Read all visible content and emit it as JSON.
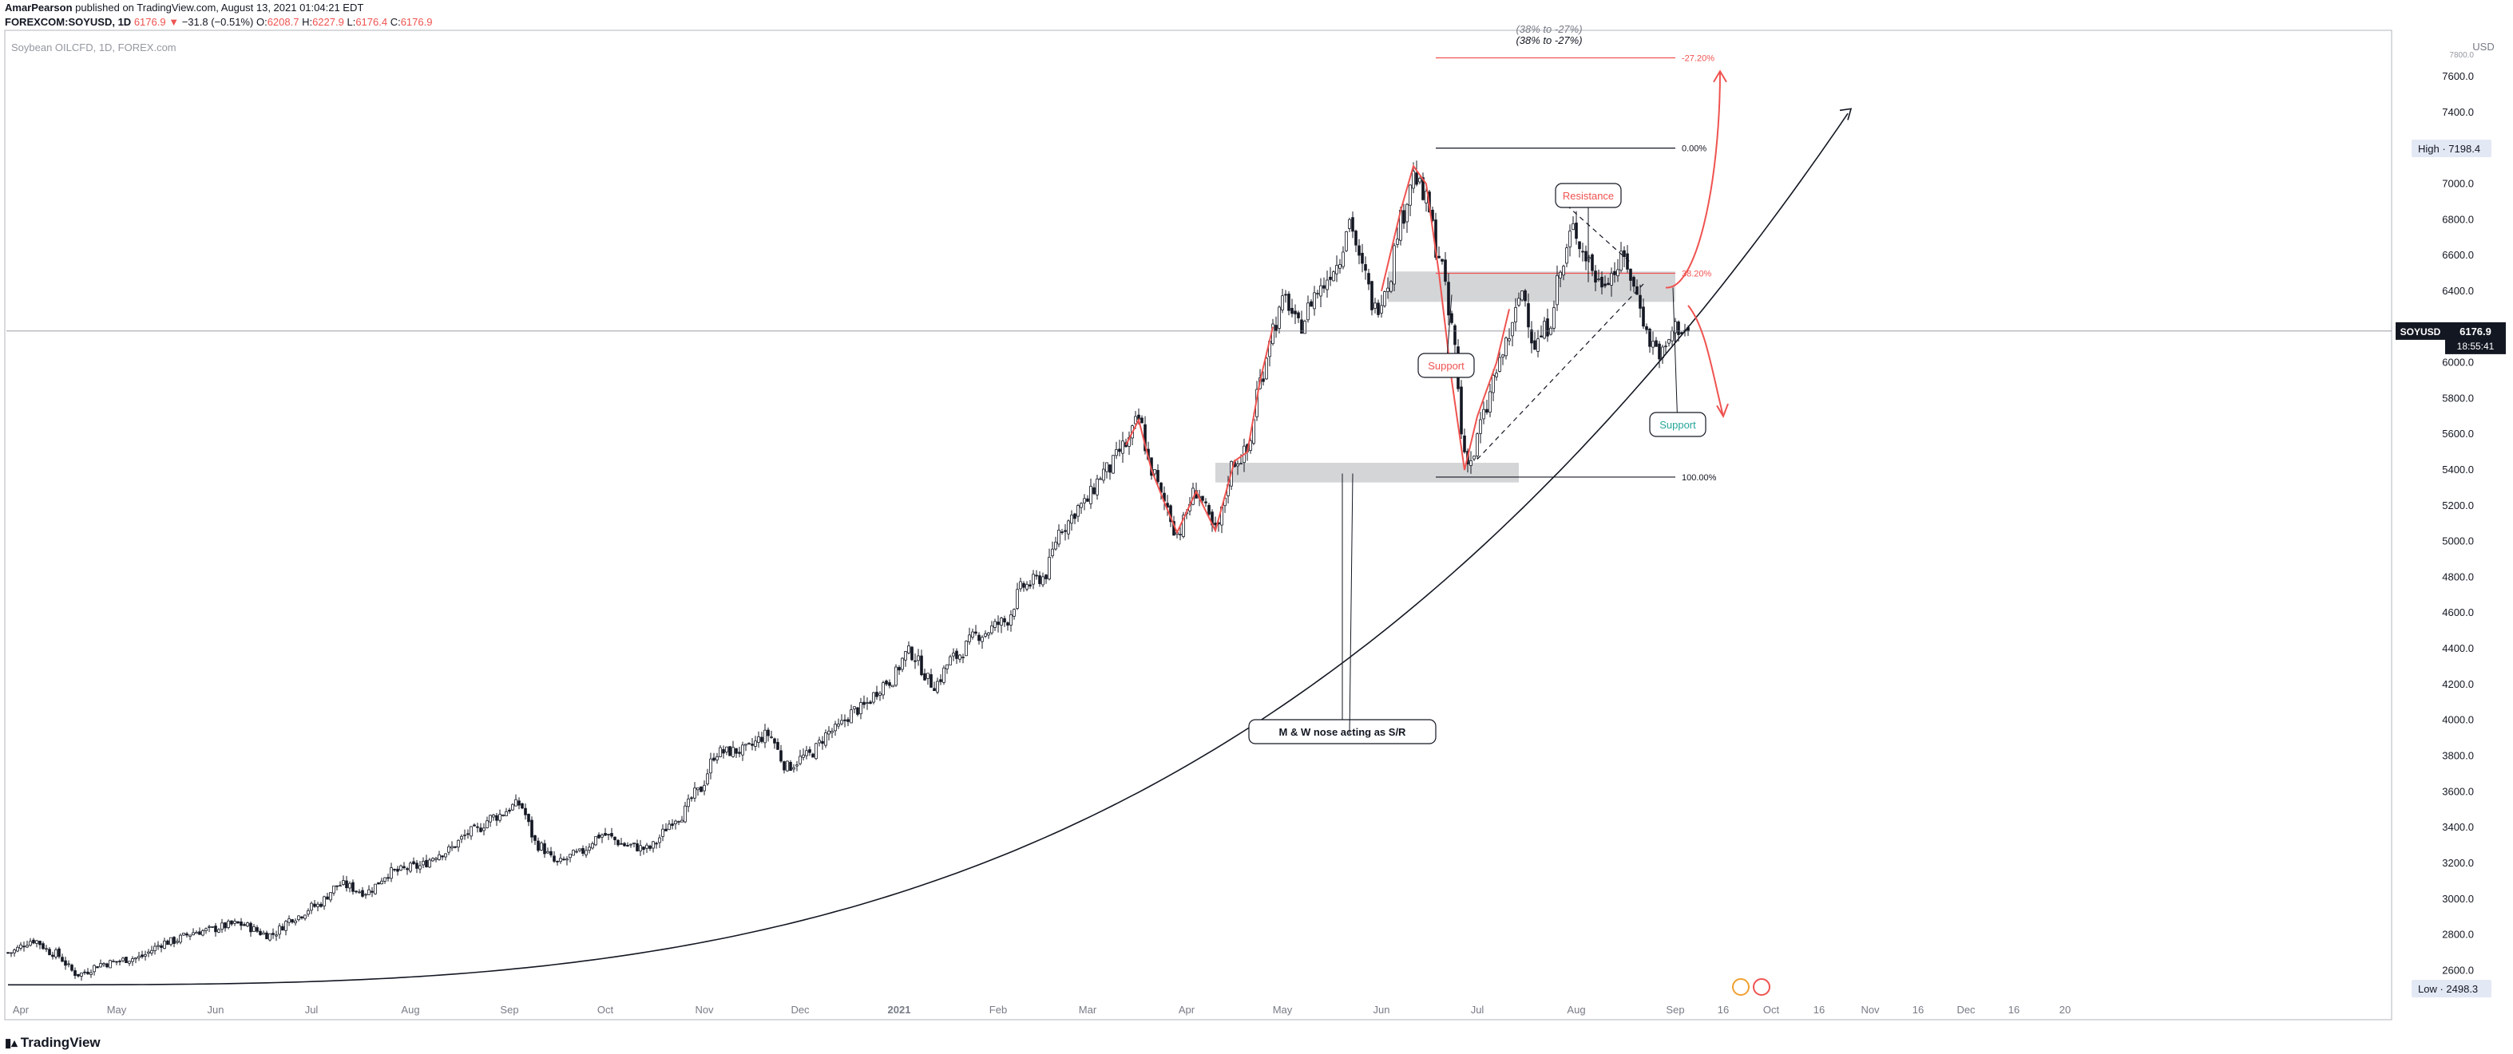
{
  "header": {
    "author": "AmarPearson",
    "published": "published on TradingView.com, August 13, 2021 01:04:21 EDT",
    "symbol_line": "FOREXCOM:SOYUSD, 1D",
    "last": "6176.9",
    "change": "−31.8 (−0.51%)",
    "o_label": "O:",
    "o": "6208.7",
    "h_label": "H:",
    "h": "6227.9",
    "l_label": "L:",
    "l": "6176.4",
    "c_label": "C:",
    "c": "6176.9"
  },
  "footer": {
    "brand": "TradingView",
    "logo_icon": "tradingview-logo-icon"
  },
  "colors": {
    "red": "#ef5350",
    "green": "#26a69a",
    "grid": "#e0e3eb",
    "zone": "#c9cacd",
    "candle_up": "#ffffff",
    "candle_down": "#131722"
  },
  "chart_data": {
    "type": "candlestick",
    "instrument_label": "Soybean OILCFD, 1D, FOREX.com",
    "ylim": [
      2450,
      7850
    ],
    "y_ticks": [
      2600,
      2800,
      3000,
      3200,
      3400,
      3600,
      3800,
      4000,
      4200,
      4400,
      4600,
      4800,
      5000,
      5200,
      5400,
      5600,
      5800,
      6000,
      6200,
      6400,
      6600,
      6800,
      7000,
      7200,
      7400,
      7600
    ],
    "y_tick_labels": [
      "2600.0",
      "2800.0",
      "3000.0",
      "3200.0",
      "3400.0",
      "3600.0",
      "3800.0",
      "4000.0",
      "4200.0",
      "4400.0",
      "4600.0",
      "4800.0",
      "5000.0",
      "5200.0",
      "5400.0",
      "5600.0",
      "5800.0",
      "6000.0",
      "6200.0",
      "6400.0",
      "6600.0",
      "6800.0",
      "7000.0",
      "7200.0",
      "7400.0",
      "7600.0"
    ],
    "y_top_label": "7800.0",
    "x_ticks": [
      {
        "day": 4,
        "label": "Apr",
        "bold": false
      },
      {
        "day": 34,
        "label": "May",
        "bold": false
      },
      {
        "day": 65,
        "label": "Jun",
        "bold": false
      },
      {
        "day": 95,
        "label": "Jul",
        "bold": false
      },
      {
        "day": 126,
        "label": "Aug",
        "bold": false
      },
      {
        "day": 157,
        "label": "Sep",
        "bold": false
      },
      {
        "day": 187,
        "label": "Oct",
        "bold": false
      },
      {
        "day": 218,
        "label": "Nov",
        "bold": false
      },
      {
        "day": 248,
        "label": "Dec",
        "bold": false
      },
      {
        "day": 279,
        "label": "2021",
        "bold": true
      },
      {
        "day": 310,
        "label": "Feb",
        "bold": false
      },
      {
        "day": 338,
        "label": "Mar",
        "bold": false
      },
      {
        "day": 369,
        "label": "Apr",
        "bold": false
      },
      {
        "day": 399,
        "label": "May",
        "bold": false
      },
      {
        "day": 430,
        "label": "Jun",
        "bold": false
      },
      {
        "day": 460,
        "label": "Jul",
        "bold": false
      },
      {
        "day": 491,
        "label": "Aug",
        "bold": false
      },
      {
        "day": 522,
        "label": "Sep",
        "bold": false
      },
      {
        "day": 537,
        "label": "16",
        "bold": false
      },
      {
        "day": 552,
        "label": "Oct",
        "bold": false
      },
      {
        "day": 567,
        "label": "16",
        "bold": false
      },
      {
        "day": 583,
        "label": "Nov",
        "bold": false
      },
      {
        "day": 598,
        "label": "16",
        "bold": false
      },
      {
        "day": 613,
        "label": "Dec",
        "bold": false
      },
      {
        "day": 628,
        "label": "16",
        "bold": false
      },
      {
        "day": 644,
        "label": "20",
        "bold": false
      }
    ],
    "x_range_days": [
      0,
      650
    ],
    "anchors": [
      [
        0,
        2700
      ],
      [
        8,
        2770
      ],
      [
        14,
        2700
      ],
      [
        22,
        2580
      ],
      [
        30,
        2640
      ],
      [
        40,
        2670
      ],
      [
        50,
        2760
      ],
      [
        60,
        2820
      ],
      [
        72,
        2860
      ],
      [
        82,
        2800
      ],
      [
        90,
        2900
      ],
      [
        96,
        2960
      ],
      [
        104,
        3080
      ],
      [
        112,
        3040
      ],
      [
        120,
        3150
      ],
      [
        128,
        3180
      ],
      [
        136,
        3260
      ],
      [
        146,
        3380
      ],
      [
        152,
        3460
      ],
      [
        160,
        3530
      ],
      [
        166,
        3300
      ],
      [
        172,
        3200
      ],
      [
        178,
        3250
      ],
      [
        186,
        3360
      ],
      [
        194,
        3300
      ],
      [
        200,
        3280
      ],
      [
        210,
        3460
      ],
      [
        216,
        3600
      ],
      [
        222,
        3820
      ],
      [
        230,
        3830
      ],
      [
        238,
        3920
      ],
      [
        244,
        3740
      ],
      [
        250,
        3800
      ],
      [
        258,
        3940
      ],
      [
        266,
        4060
      ],
      [
        276,
        4220
      ],
      [
        282,
        4380
      ],
      [
        290,
        4200
      ],
      [
        296,
        4350
      ],
      [
        304,
        4480
      ],
      [
        312,
        4550
      ],
      [
        318,
        4750
      ],
      [
        324,
        4800
      ],
      [
        330,
        5080
      ],
      [
        336,
        5200
      ],
      [
        344,
        5400
      ],
      [
        350,
        5540
      ],
      [
        354,
        5680
      ],
      [
        358,
        5400
      ],
      [
        362,
        5220
      ],
      [
        366,
        5050
      ],
      [
        372,
        5280
      ],
      [
        378,
        5060
      ],
      [
        384,
        5450
      ],
      [
        388,
        5500
      ],
      [
        392,
        5900
      ],
      [
        396,
        6200
      ],
      [
        400,
        6350
      ],
      [
        404,
        6200
      ],
      [
        410,
        6400
      ],
      [
        416,
        6550
      ],
      [
        420,
        6800
      ],
      [
        424,
        6520
      ],
      [
        428,
        6300
      ],
      [
        432,
        6450
      ],
      [
        436,
        6800
      ],
      [
        440,
        7050
      ],
      [
        444,
        6900
      ],
      [
        448,
        6600
      ],
      [
        452,
        6200
      ],
      [
        456,
        5500
      ],
      [
        458,
        5450
      ],
      [
        462,
        5700
      ],
      [
        466,
        5950
      ],
      [
        470,
        6150
      ],
      [
        474,
        6400
      ],
      [
        478,
        6100
      ],
      [
        482,
        6200
      ],
      [
        486,
        6500
      ],
      [
        490,
        6750
      ],
      [
        494,
        6600
      ],
      [
        498,
        6450
      ],
      [
        502,
        6500
      ],
      [
        506,
        6580
      ],
      [
        510,
        6380
      ],
      [
        514,
        6120
      ],
      [
        518,
        6050
      ],
      [
        522,
        6200
      ],
      [
        526,
        6177
      ]
    ],
    "last_candle_day": 526,
    "last_price": 6176.9,
    "last_price_label": "6176.9",
    "symbol_badge": "SOYUSD",
    "countdown": "18:55:41",
    "high_label": "High",
    "high_value": "7198.4",
    "low_label": "Low",
    "low_value": "2498.3",
    "fib": {
      "levels": [
        {
          "label": "-27.20%",
          "price": 7705,
          "color": "#ef5350"
        },
        {
          "label": "0.00%",
          "price": 7200,
          "color": "#131722"
        },
        {
          "label": "38.20%",
          "price": 6500,
          "color": "#ef5350"
        },
        {
          "label": "100.00%",
          "price": 5360,
          "color": "#131722"
        }
      ],
      "x_start_day": 447,
      "x_end_day": 522,
      "top_note_left": "(38% to -27%)",
      "top_note_partial": "(38% to -27%)"
    },
    "zones": [
      {
        "x0": 378,
        "x1": 473,
        "y0": 5330,
        "y1": 5440
      },
      {
        "x0": 432,
        "x1": 522,
        "y0": 6340,
        "y1": 6510
      }
    ],
    "annotations": [
      {
        "text": "Resistance",
        "color": "#ef5350"
      },
      {
        "text": "Support",
        "color": "#ef5350"
      },
      {
        "text": "Support",
        "color": "#26a69a"
      },
      {
        "text": "M & W nose acting as S/R",
        "color": "#131722"
      }
    ]
  }
}
